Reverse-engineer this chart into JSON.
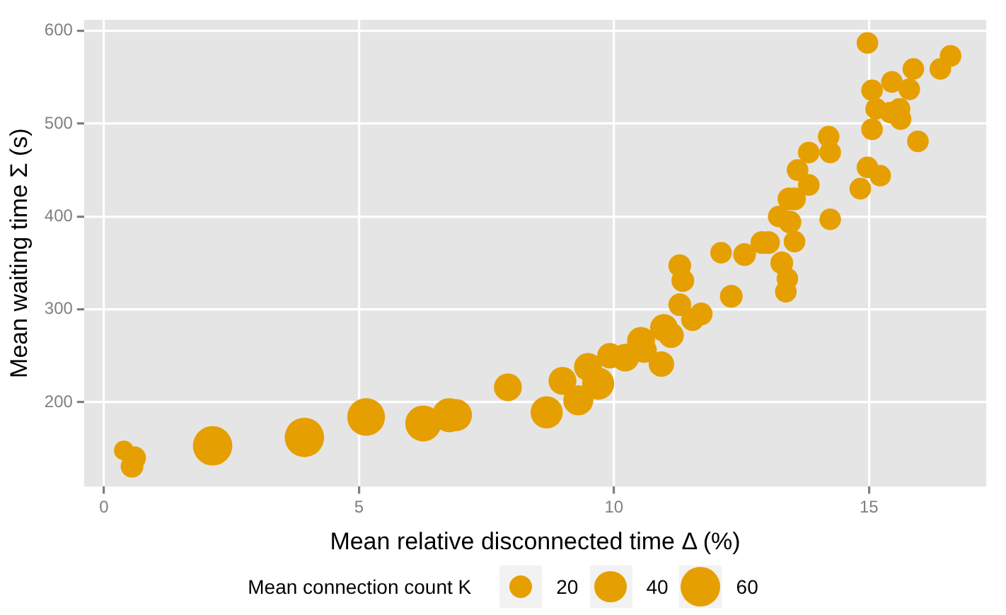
{
  "chart_data": {
    "type": "bubble",
    "xlabel": "Mean relative disconnected time Δ (%)",
    "ylabel": "Mean waiting time Σ (s)",
    "legend_title": "Mean connection count K",
    "color": "#e69f00",
    "xlim": [
      -0.39,
      17.3
    ],
    "ylim": [
      109,
      612
    ],
    "xticks": [
      0,
      5,
      10,
      15
    ],
    "yticks": [
      200,
      300,
      400,
      500,
      600
    ],
    "grid": true,
    "size_legend": [
      20,
      40,
      60
    ],
    "x": [
      0.39,
      0.6,
      0.55,
      2.13,
      3.93,
      5.14,
      6.26,
      6.77,
      6.9,
      7.92,
      8.68,
      8.99,
      9.3,
      9.49,
      9.69,
      9.92,
      10.22,
      10.53,
      10.59,
      10.93,
      10.98,
      11.12,
      11.29,
      11.35,
      11.29,
      11.54,
      11.71,
      12.1,
      12.3,
      12.56,
      12.9,
      13.03,
      13.23,
      13.29,
      13.4,
      13.37,
      13.45,
      13.43,
      13.54,
      13.54,
      13.6,
      13.82,
      13.82,
      14.21,
      14.24,
      14.24,
      14.97,
      14.97,
      14.83,
      15.06,
      15.14,
      15.06,
      15.22,
      15.45,
      15.42,
      15.6,
      15.62,
      15.79,
      15.87,
      15.96,
      16.4,
      16.6
    ],
    "values": [
      148,
      140,
      131,
      153,
      162,
      184,
      177,
      186,
      186,
      216,
      189,
      223,
      202,
      238,
      220,
      250,
      248,
      266,
      256,
      241,
      280,
      272,
      347,
      331,
      305,
      289,
      295,
      361,
      314,
      359,
      372,
      372,
      400,
      350,
      333,
      319,
      394,
      419,
      419,
      373,
      450,
      469,
      434,
      486,
      469,
      397,
      587,
      453,
      430,
      536,
      516,
      494,
      444,
      545,
      512,
      516,
      505,
      537,
      559,
      481,
      559,
      573
    ],
    "sizes": [
      15,
      20,
      20,
      60,
      60,
      55,
      50,
      45,
      40,
      30,
      40,
      30,
      35,
      30,
      40,
      25,
      30,
      30,
      25,
      25,
      30,
      25,
      20,
      20,
      20,
      20,
      20,
      18,
      20,
      20,
      20,
      20,
      18,
      20,
      18,
      18,
      20,
      20,
      20,
      18,
      18,
      18,
      18,
      18,
      18,
      18,
      18,
      18,
      18,
      18,
      18,
      18,
      18,
      18,
      18,
      18,
      18,
      18,
      18,
      18,
      18,
      18
    ]
  }
}
